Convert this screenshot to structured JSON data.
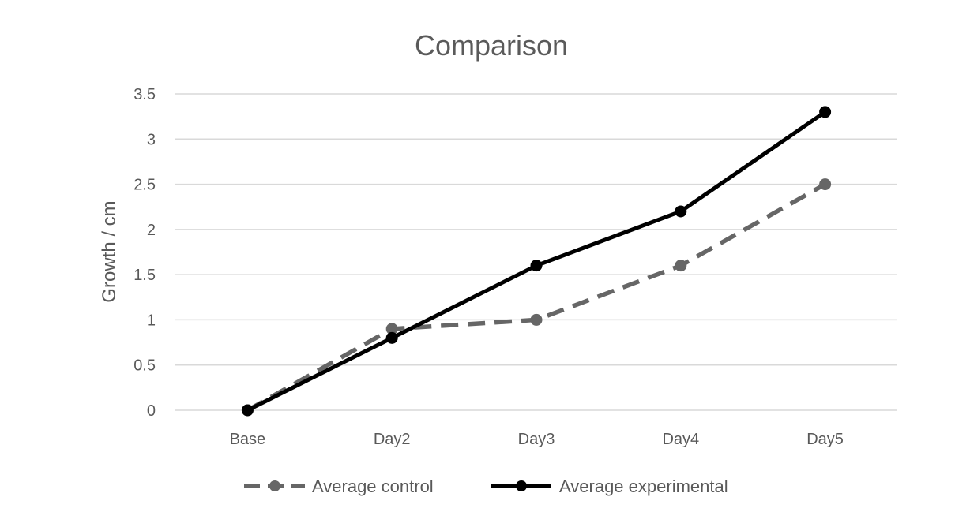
{
  "chart_data": {
    "type": "line",
    "title": "Comparison",
    "xlabel": "",
    "ylabel": "Growth / cm",
    "categories": [
      "Base",
      "Day2",
      "Day3",
      "Day4",
      "Day5"
    ],
    "ylim": [
      0,
      3.5
    ],
    "yticks": [
      "0",
      "0.5",
      "1",
      "1.5",
      "2",
      "2.5",
      "3",
      "3.5"
    ],
    "grid": true,
    "legend_position": "bottom",
    "series": [
      {
        "name": "Average control",
        "values": [
          0,
          0.9,
          1.0,
          1.6,
          2.5
        ],
        "color": "#666666",
        "style": "dashed"
      },
      {
        "name": "Average experimental",
        "values": [
          0,
          0.8,
          1.6,
          2.2,
          3.3
        ],
        "color": "#000000",
        "style": "solid"
      }
    ]
  }
}
